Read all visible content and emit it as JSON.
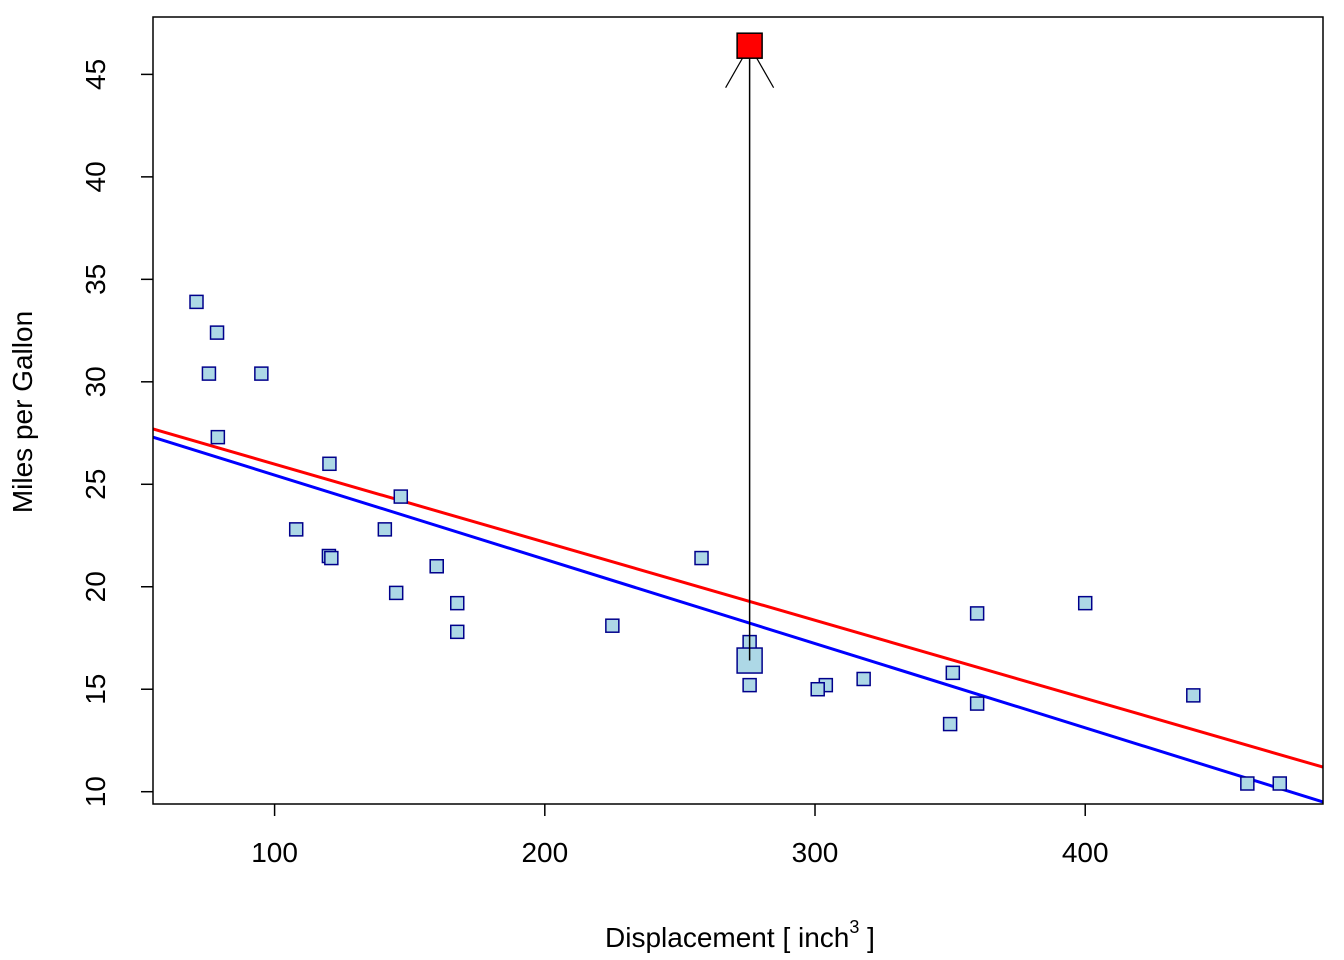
{
  "chart_data": {
    "type": "scatter",
    "xlabel": "Displacement [ inch",
    "xlabel_sup": "3",
    "xlabel_tail": " ]",
    "ylabel": "Miles per Gallon",
    "xlim": [
      55,
      488
    ],
    "ylim": [
      9.4,
      47.8
    ],
    "x_ticks": [
      100,
      200,
      300,
      400
    ],
    "y_ticks": [
      10,
      15,
      20,
      25,
      30,
      35,
      40,
      45
    ],
    "colors": {
      "point_fill": "#add8e6",
      "point_stroke": "#00008b",
      "highlight_fill": "#ff0000",
      "line_red": "#ff0000",
      "line_blue": "#0000ff"
    },
    "points": [
      {
        "x": 160,
        "y": 21.0
      },
      {
        "x": 160,
        "y": 21.0
      },
      {
        "x": 108,
        "y": 22.8
      },
      {
        "x": 258,
        "y": 21.4
      },
      {
        "x": 360,
        "y": 18.7
      },
      {
        "x": 225,
        "y": 18.1
      },
      {
        "x": 360,
        "y": 14.3
      },
      {
        "x": 146.7,
        "y": 24.4
      },
      {
        "x": 140.8,
        "y": 22.8
      },
      {
        "x": 167.6,
        "y": 19.2
      },
      {
        "x": 167.6,
        "y": 17.8
      },
      {
        "x": 275.8,
        "y": 17.3
      },
      {
        "x": 275.8,
        "y": 15.2
      },
      {
        "x": 472,
        "y": 10.4
      },
      {
        "x": 460,
        "y": 10.4
      },
      {
        "x": 78.7,
        "y": 32.4
      },
      {
        "x": 75.7,
        "y": 30.4
      },
      {
        "x": 71.1,
        "y": 33.9
      },
      {
        "x": 120.1,
        "y": 21.5
      },
      {
        "x": 318,
        "y": 15.5
      },
      {
        "x": 304,
        "y": 15.2
      },
      {
        "x": 350,
        "y": 13.3
      },
      {
        "x": 400,
        "y": 19.2
      },
      {
        "x": 79,
        "y": 27.3
      },
      {
        "x": 120.3,
        "y": 26.0
      },
      {
        "x": 95.1,
        "y": 30.4
      },
      {
        "x": 351,
        "y": 15.8
      },
      {
        "x": 145,
        "y": 19.7
      },
      {
        "x": 301,
        "y": 15.0
      },
      {
        "x": 121,
        "y": 21.4
      },
      {
        "x": 440,
        "y": 14.7
      }
    ],
    "moved_point_original": {
      "x": 275.8,
      "y": 16.4
    },
    "moved_point_new": {
      "x": 275.8,
      "y": 46.4
    },
    "lines": [
      {
        "color": "red",
        "x": [
          55,
          488
        ],
        "y": [
          27.7,
          11.2
        ]
      },
      {
        "color": "blue",
        "x": [
          55,
          488
        ],
        "y": [
          27.3,
          9.5
        ]
      }
    ]
  }
}
